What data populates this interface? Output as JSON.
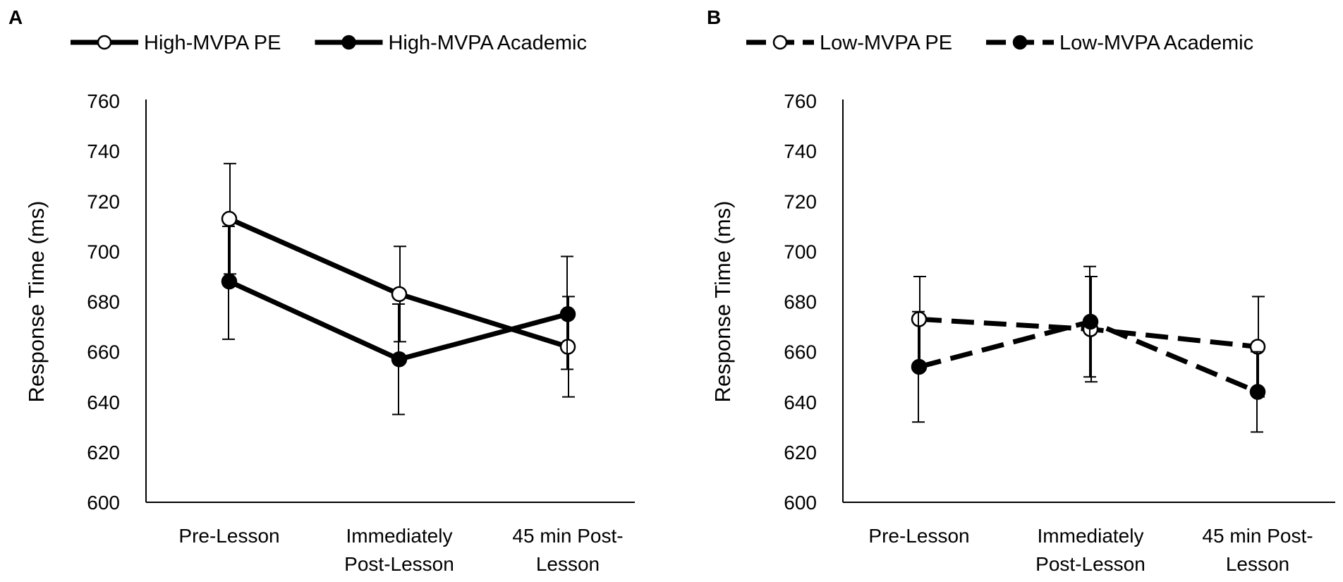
{
  "chart_data": [
    {
      "panel": "A",
      "type": "line",
      "ylabel": "Response Time (ms)",
      "xlabel": "",
      "ylim": [
        600,
        760
      ],
      "yticks": [
        600,
        620,
        640,
        660,
        680,
        700,
        720,
        740,
        760
      ],
      "categories": [
        "Pre-Lesson",
        "Immediately Post-Lesson",
        "45 min Post-Lesson"
      ],
      "category_lines": [
        [
          "Pre-Lesson"
        ],
        [
          "Immediately",
          "Post-Lesson"
        ],
        [
          "45 min Post-",
          "Lesson"
        ]
      ],
      "legend": "top",
      "series": [
        {
          "name": "High-MVPA PE",
          "marker": "open-circle",
          "line": "solid",
          "values": [
            713,
            683,
            662
          ],
          "err_low": [
            691,
            664,
            642
          ],
          "err_high": [
            735,
            702,
            682
          ]
        },
        {
          "name": "High-MVPA Academic",
          "marker": "filled-circle",
          "line": "solid",
          "values": [
            688,
            657,
            675
          ],
          "err_low": [
            665,
            635,
            653
          ],
          "err_high": [
            710,
            679,
            698
          ]
        }
      ]
    },
    {
      "panel": "B",
      "type": "line",
      "ylabel": "Response Time (ms)",
      "xlabel": "",
      "ylim": [
        600,
        760
      ],
      "yticks": [
        600,
        620,
        640,
        660,
        680,
        700,
        720,
        740,
        760
      ],
      "categories": [
        "Pre-Lesson",
        "Immediately Post-Lesson",
        "45 min Post-Lesson"
      ],
      "category_lines": [
        [
          "Pre-Lesson"
        ],
        [
          "Immediately",
          "Post-Lesson"
        ],
        [
          "45 min Post-",
          "Lesson"
        ]
      ],
      "legend": "top",
      "series": [
        {
          "name": "Low-MVPA PE",
          "marker": "open-circle",
          "line": "dashed",
          "values": [
            673,
            669,
            662
          ],
          "err_low": [
            655,
            648,
            642
          ],
          "err_high": [
            690,
            690,
            682
          ]
        },
        {
          "name": "Low-MVPA Academic",
          "marker": "filled-circle",
          "line": "dashed",
          "values": [
            654,
            672,
            644
          ],
          "err_low": [
            632,
            650,
            628
          ],
          "err_high": [
            676,
            694,
            660
          ]
        }
      ]
    }
  ]
}
